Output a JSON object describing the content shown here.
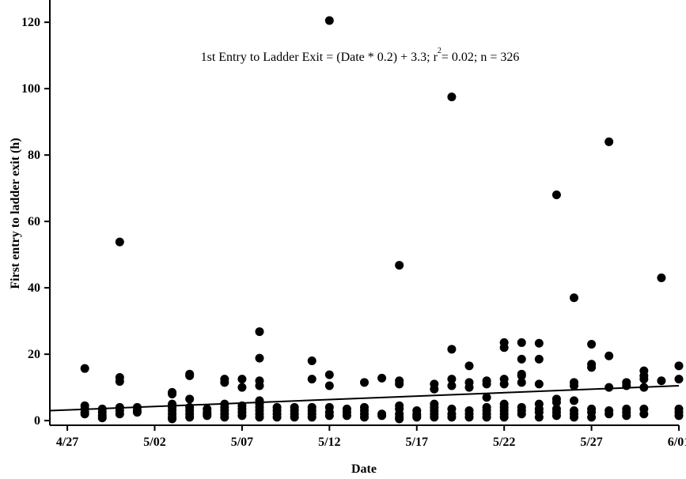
{
  "chart_data": {
    "type": "scatter",
    "annotation": [
      "1st Entry to Ladder Exit = (Date * 0.2) + 3.3; r",
      "2",
      "= 0.02; n = 326"
    ],
    "x_label": "Date",
    "y_label": "First entry to ladder exit (h)",
    "color": "#000000",
    "x": [
      "4/28",
      "4/28",
      "4/28",
      "4/28",
      "4/28",
      "4/29",
      "4/29",
      "4/29",
      "4/29",
      "4/30",
      "4/30",
      "4/30",
      "4/30",
      "4/30",
      "4/30",
      "5/01",
      "5/01",
      "5/01",
      "5/03",
      "5/03",
      "5/03",
      "5/03",
      "5/03",
      "5/03",
      "5/03",
      "5/03",
      "5/04",
      "5/04",
      "5/04",
      "5/04",
      "5/04",
      "5/04",
      "5/04",
      "5/05",
      "5/05",
      "5/05",
      "5/05",
      "5/06",
      "5/06",
      "5/06",
      "5/06",
      "5/06",
      "5/06",
      "5/06",
      "5/07",
      "5/07",
      "5/07",
      "5/07",
      "5/07",
      "5/07",
      "5/08",
      "5/08",
      "5/08",
      "5/08",
      "5/08",
      "5/08",
      "5/08",
      "5/08",
      "5/08",
      "5/08",
      "5/09",
      "5/09",
      "5/09",
      "5/09",
      "5/10",
      "5/10",
      "5/10",
      "5/10",
      "5/11",
      "5/11",
      "5/11",
      "5/11",
      "5/11",
      "5/11",
      "5/12",
      "5/12",
      "5/12",
      "5/12",
      "5/12",
      "5/12",
      "5/13",
      "5/13",
      "5/13",
      "5/14",
      "5/14",
      "5/14",
      "5/14",
      "5/14",
      "5/15",
      "5/15",
      "5/15",
      "5/16",
      "5/16",
      "5/16",
      "5/16",
      "5/16",
      "5/16",
      "5/16",
      "5/16",
      "5/17",
      "5/17",
      "5/17",
      "5/17",
      "5/18",
      "5/18",
      "5/18",
      "5/18",
      "5/18",
      "5/18",
      "5/18",
      "5/19",
      "5/19",
      "5/19",
      "5/19",
      "5/19",
      "5/19",
      "5/19",
      "5/20",
      "5/20",
      "5/20",
      "5/20",
      "5/20",
      "5/20",
      "5/21",
      "5/21",
      "5/21",
      "5/21",
      "5/21",
      "5/21",
      "5/21",
      "5/22",
      "5/22",
      "5/22",
      "5/22",
      "5/22",
      "5/22",
      "5/22",
      "5/22",
      "5/22",
      "5/23",
      "5/23",
      "5/23",
      "5/23",
      "5/23",
      "5/23",
      "5/23",
      "5/23",
      "5/24",
      "5/24",
      "5/24",
      "5/24",
      "5/24",
      "5/24",
      "5/24",
      "5/25",
      "5/25",
      "5/25",
      "5/25",
      "5/25",
      "5/25",
      "5/26",
      "5/26",
      "5/26",
      "5/26",
      "5/26",
      "5/26",
      "5/26",
      "5/27",
      "5/27",
      "5/27",
      "5/27",
      "5/27",
      "5/27",
      "5/28",
      "5/28",
      "5/28",
      "5/28",
      "5/28",
      "5/29",
      "5/29",
      "5/29",
      "5/29",
      "5/29",
      "5/30",
      "5/30",
      "5/30",
      "5/30",
      "5/30",
      "5/30",
      "5/31",
      "5/31",
      "6/01",
      "6/01",
      "6/01",
      "6/01",
      "6/01"
    ],
    "values": [
      15.7,
      4.5,
      3.5,
      2.5,
      2,
      3.5,
      2.5,
      1.5,
      0.8,
      53.8,
      13,
      11.8,
      4,
      3,
      2,
      4,
      3,
      2.5,
      8.5,
      8,
      5,
      4,
      3,
      2,
      1,
      0.5,
      14,
      13.5,
      6.5,
      4,
      3,
      2,
      1,
      3.5,
      2.5,
      2,
      1.5,
      12.5,
      11.5,
      5,
      4,
      3,
      2,
      1,
      12.5,
      10,
      4.5,
      3.5,
      2.5,
      1.5,
      26.8,
      18.8,
      12,
      10.5,
      6,
      5,
      4,
      3,
      2,
      1,
      4,
      3,
      2,
      1,
      4,
      3,
      2,
      1,
      18,
      12.5,
      4,
      3,
      2,
      1,
      120.5,
      13.8,
      10.5,
      4,
      2.5,
      1.5,
      3.5,
      2.5,
      1.5,
      11.5,
      4,
      3,
      2,
      1,
      12.8,
      2,
      1.5,
      46.8,
      12,
      11,
      4.5,
      3.5,
      2,
      1,
      0.5,
      3,
      2,
      1.5,
      1,
      11,
      9.5,
      5,
      4,
      3,
      2,
      1,
      97.5,
      21.5,
      12.5,
      10.5,
      3.5,
      2,
      1,
      16.5,
      11.5,
      10,
      3,
      2,
      1,
      12,
      11,
      7,
      4,
      3,
      2,
      1,
      23.5,
      22,
      12.5,
      11,
      5,
      4,
      3,
      2,
      1,
      23.5,
      18.5,
      14,
      13.5,
      11.5,
      4,
      3,
      2,
      23.3,
      18.5,
      11,
      5,
      3.5,
      2.5,
      1,
      68,
      6.5,
      5.5,
      3.5,
      2.5,
      1.5,
      37,
      11.5,
      10.5,
      6,
      3,
      2,
      1,
      23,
      17,
      16,
      3.5,
      2.5,
      1,
      84,
      19.5,
      10,
      3,
      2,
      11.5,
      10.5,
      3.5,
      2.5,
      1.5,
      15,
      13.5,
      12.5,
      10,
      3.5,
      2,
      43,
      12,
      16.5,
      12.5,
      3.5,
      2.5,
      1.5
    ],
    "fit": {
      "x": [
        "4/26",
        "6/01"
      ],
      "values": [
        3.0,
        10.5
      ]
    },
    "xlim": [
      "4/26",
      "6/01"
    ],
    "xticks": [
      "4/27",
      "5/02",
      "5/07",
      "5/12",
      "5/17",
      "5/22",
      "5/27",
      "6/01"
    ],
    "ylim": [
      -1.4,
      126.7
    ],
    "yticks": [
      0,
      20,
      40,
      60,
      80,
      100,
      120
    ]
  }
}
